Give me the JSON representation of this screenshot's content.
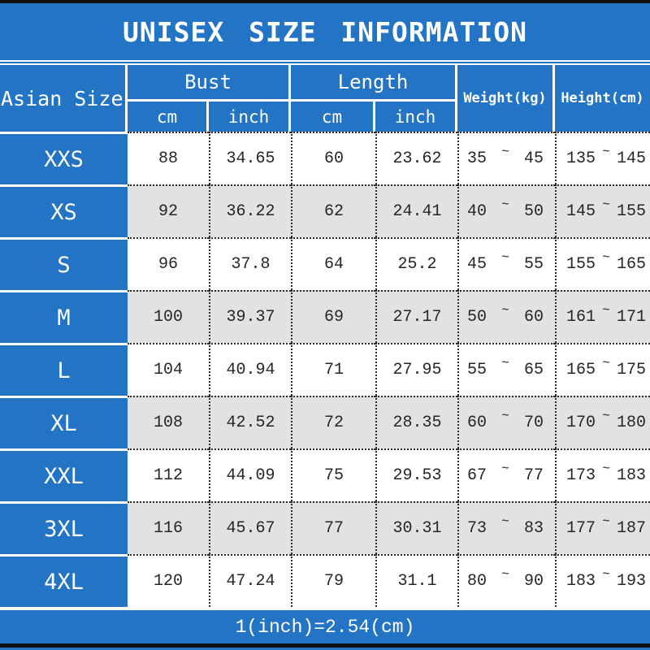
{
  "title": "UNISEX SIZE INFORMATION",
  "footer_note": "1(inch)=2.54(cm)",
  "colors": {
    "header_blue": "#2474c6",
    "row_white": "#ffffff",
    "row_gray": "#e3e1e2",
    "dotted_border": "#2a2a2a",
    "black_bar": "#101010",
    "text_light": "#ffffff",
    "text_dark": "#262626"
  },
  "header": {
    "size_col": "Asian Size",
    "bust_label": "Bust",
    "length_label": "Length",
    "bust_units": {
      "cm": "cm",
      "inch": "inch"
    },
    "length_units": {
      "cm": "cm",
      "inch": "inch"
    },
    "weight_label": "Weight(kg)",
    "height_label": "Height(cm)",
    "tilde": "~"
  },
  "chart_data": {
    "type": "table",
    "title": "UNISEX SIZE INFORMATION",
    "columns": [
      "Asian Size",
      "Bust cm",
      "Bust inch",
      "Length cm",
      "Length inch",
      "Weight(kg) min",
      "Weight(kg) max",
      "Height(cm) min",
      "Height(cm) max"
    ],
    "rows": [
      {
        "size": "XXS",
        "bust_cm": "88",
        "bust_inch": "34.65",
        "length_cm": "60",
        "length_inch": "23.62",
        "weight_min": "35",
        "weight_max": "45",
        "height_min": "135",
        "height_max": "145"
      },
      {
        "size": "XS",
        "bust_cm": "92",
        "bust_inch": "36.22",
        "length_cm": "62",
        "length_inch": "24.41",
        "weight_min": "40",
        "weight_max": "50",
        "height_min": "145",
        "height_max": "155"
      },
      {
        "size": "S",
        "bust_cm": "96",
        "bust_inch": "37.8",
        "length_cm": "64",
        "length_inch": "25.2",
        "weight_min": "45",
        "weight_max": "55",
        "height_min": "155",
        "height_max": "165"
      },
      {
        "size": "M",
        "bust_cm": "100",
        "bust_inch": "39.37",
        "length_cm": "69",
        "length_inch": "27.17",
        "weight_min": "50",
        "weight_max": "60",
        "height_min": "161",
        "height_max": "171"
      },
      {
        "size": "L",
        "bust_cm": "104",
        "bust_inch": "40.94",
        "length_cm": "71",
        "length_inch": "27.95",
        "weight_min": "55",
        "weight_max": "65",
        "height_min": "165",
        "height_max": "175"
      },
      {
        "size": "XL",
        "bust_cm": "108",
        "bust_inch": "42.52",
        "length_cm": "72",
        "length_inch": "28.35",
        "weight_min": "60",
        "weight_max": "70",
        "height_min": "170",
        "height_max": "180"
      },
      {
        "size": "XXL",
        "bust_cm": "112",
        "bust_inch": "44.09",
        "length_cm": "75",
        "length_inch": "29.53",
        "weight_min": "67",
        "weight_max": "77",
        "height_min": "173",
        "height_max": "183"
      },
      {
        "size": "3XL",
        "bust_cm": "116",
        "bust_inch": "45.67",
        "length_cm": "77",
        "length_inch": "30.31",
        "weight_min": "73",
        "weight_max": "83",
        "height_min": "177",
        "height_max": "187"
      },
      {
        "size": "4XL",
        "bust_cm": "120",
        "bust_inch": "47.24",
        "length_cm": "79",
        "length_inch": "31.1",
        "weight_min": "80",
        "weight_max": "90",
        "height_min": "183",
        "height_max": "193"
      }
    ]
  }
}
